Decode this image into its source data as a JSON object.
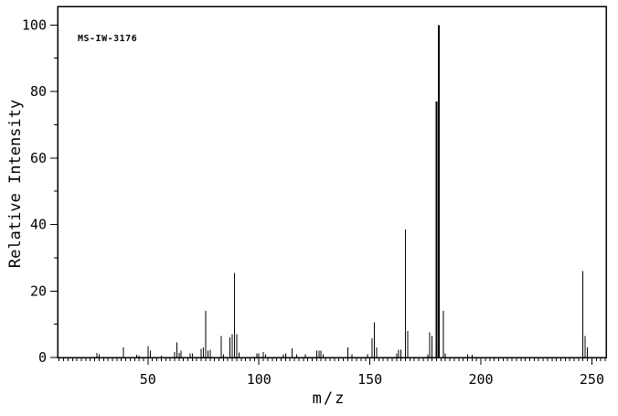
{
  "title": "MS-IW-3176",
  "axes": {
    "x_label": "m/z",
    "y_label": "Relative Intensity",
    "x_ticks_major": [
      50,
      100,
      150,
      200,
      250
    ],
    "x_minor_step": 2,
    "x_range": [
      9.3,
      256.4
    ],
    "y_ticks_major": [
      0,
      20,
      40,
      60,
      80,
      100
    ],
    "y_ticks_minor": [
      10,
      30,
      50,
      70,
      90
    ],
    "y_range": [
      0,
      100
    ]
  },
  "colors": {
    "foreground": "#000000",
    "background": "#ffffff"
  },
  "chart_data": {
    "type": "bar",
    "subtype": "mass-spectrum-stick-plot",
    "title": "MS-IW-3176",
    "xlabel": "m/z",
    "ylabel": "Relative Intensity",
    "xlim": [
      9,
      257
    ],
    "ylim": [
      0,
      100
    ],
    "grid": false,
    "legend": "none",
    "peaks_mz_intensity": [
      [
        27,
        1.4
      ],
      [
        28,
        1.0
      ],
      [
        39,
        3.0
      ],
      [
        45,
        0.8
      ],
      [
        46,
        0.6
      ],
      [
        50,
        3.5
      ],
      [
        51,
        2.0
      ],
      [
        56,
        0.6
      ],
      [
        62,
        1.7
      ],
      [
        63,
        4.6
      ],
      [
        64,
        1.4
      ],
      [
        65,
        2.1
      ],
      [
        69,
        1.3
      ],
      [
        70,
        1.3
      ],
      [
        74,
        2.6
      ],
      [
        75,
        3.0
      ],
      [
        76,
        14.0
      ],
      [
        77,
        2.1
      ],
      [
        78,
        2.3
      ],
      [
        83,
        6.5
      ],
      [
        84,
        1.0
      ],
      [
        87,
        6.0
      ],
      [
        88,
        7.0
      ],
      [
        89,
        25.5
      ],
      [
        90,
        7.0
      ],
      [
        91,
        1.5
      ],
      [
        99,
        1.3
      ],
      [
        100,
        1.3
      ],
      [
        102,
        1.7
      ],
      [
        103,
        1.0
      ],
      [
        111,
        1.0
      ],
      [
        112,
        1.3
      ],
      [
        115,
        2.7
      ],
      [
        117,
        1.0
      ],
      [
        121,
        1.0
      ],
      [
        126,
        2.0
      ],
      [
        127,
        2.0
      ],
      [
        128,
        2.0
      ],
      [
        129,
        1.0
      ],
      [
        140,
        3.0
      ],
      [
        142,
        1.0
      ],
      [
        149,
        1.0
      ],
      [
        151,
        5.8
      ],
      [
        152,
        10.6
      ],
      [
        153,
        3.0
      ],
      [
        162,
        1.2
      ],
      [
        163,
        2.3
      ],
      [
        164,
        2.3
      ],
      [
        166,
        38.5
      ],
      [
        167,
        8.0
      ],
      [
        176,
        1.0
      ],
      [
        177,
        7.5
      ],
      [
        178,
        6.5
      ],
      [
        180,
        77.0
      ],
      [
        181,
        100.0
      ],
      [
        183,
        14.0
      ],
      [
        184,
        1.2
      ],
      [
        194,
        1.0
      ],
      [
        196,
        0.8
      ],
      [
        246,
        26.0
      ],
      [
        247,
        6.5
      ],
      [
        248,
        3.0
      ]
    ]
  }
}
